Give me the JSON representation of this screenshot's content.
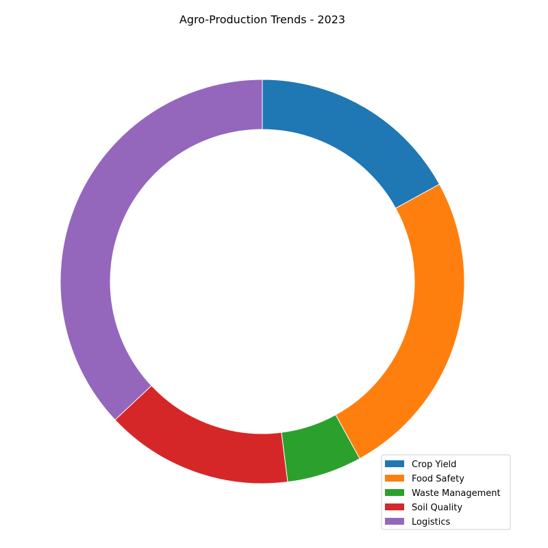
{
  "chart_data": {
    "type": "pie",
    "style": "donut",
    "title": "Agro-Production Trends - 2023",
    "start_angle_deg": 90,
    "direction": "clockwise",
    "legend_position": "lower-right",
    "slices": [
      {
        "label": "Crop Yield",
        "value": 17,
        "color": "#1f77b4"
      },
      {
        "label": "Food Safety",
        "value": 25,
        "color": "#ff7f0e"
      },
      {
        "label": "Waste Management",
        "value": 6,
        "color": "#2ca02c"
      },
      {
        "label": "Soil Quality",
        "value": 15,
        "color": "#d62728"
      },
      {
        "label": "Logistics",
        "value": 37,
        "color": "#9467bd"
      }
    ]
  }
}
